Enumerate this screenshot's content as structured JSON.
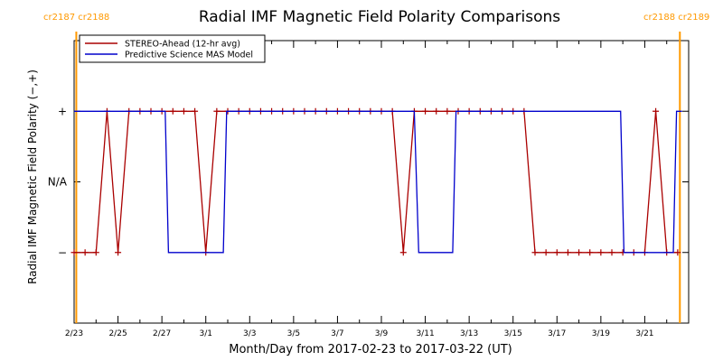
{
  "chart_data": {
    "type": "line",
    "title": "Radial IMF Magnetic Field Polarity Comparisons",
    "xlabel": "Month/Day from 2017-02-23 to 2017-03-22 (UT)",
    "ylabel": "Radial IMF Magnetic Field Polarity (−,+)",
    "y_categories": [
      "−",
      "N/A",
      "+"
    ],
    "y_values_map": {
      "−": -1,
      "N/A": 0,
      "+": 1
    },
    "ylim": [
      -2,
      2
    ],
    "x_tick_labels": [
      "2/23",
      "2/25",
      "2/27",
      "3/1",
      "3/3",
      "3/5",
      "3/7",
      "3/9",
      "3/11",
      "3/13",
      "3/15",
      "3/17",
      "3/19",
      "3/21"
    ],
    "xlim_days": [
      0,
      28
    ],
    "carrington_labels": [
      {
        "text": "cr2187 cr2188",
        "day": 0.1
      },
      {
        "text": "cr2188 cr2189",
        "day": 27.6
      }
    ],
    "legend": {
      "placement": "top-left"
    },
    "series": [
      {
        "name": "STEREO-Ahead (12-hr avg)",
        "color": "#aa0000",
        "marker": "plus",
        "x": [
          0,
          0.5,
          1,
          1.5,
          2,
          2.5,
          3,
          3.5,
          4,
          4.5,
          5,
          5.5,
          6,
          6.5,
          7,
          7.5,
          8,
          8.5,
          9,
          9.5,
          10,
          10.5,
          11,
          11.5,
          12,
          12.5,
          13,
          13.5,
          14,
          14.5,
          15,
          15.5,
          16,
          16.5,
          17,
          17.5,
          18,
          18.5,
          19,
          19.5,
          20,
          20.5,
          21,
          21.5,
          22,
          22.5,
          23,
          23.5,
          24,
          24.5,
          25,
          25.5,
          26,
          26.5,
          27,
          27.5
        ],
        "y": [
          -1,
          -1,
          -1,
          1,
          -1,
          1,
          1,
          1,
          1,
          1,
          1,
          1,
          -1,
          1,
          1,
          1,
          1,
          1,
          1,
          1,
          1,
          1,
          1,
          1,
          1,
          1,
          1,
          1,
          1,
          1,
          -1,
          1,
          1,
          1,
          1,
          1,
          1,
          1,
          1,
          1,
          1,
          1,
          -1,
          -1,
          -1,
          -1,
          -1,
          -1,
          -1,
          -1,
          -1,
          -1,
          -1,
          1,
          -1,
          -1
        ]
      },
      {
        "name": "Predictive Science MAS Model",
        "color": "#0000cc",
        "x": [
          0,
          4.15,
          4.3,
          6.8,
          6.95,
          15.5,
          15.7,
          17.25,
          17.4,
          24.9,
          25.05,
          27.3,
          27.45,
          27.7
        ],
        "y": [
          1,
          1,
          -1,
          -1,
          1,
          1,
          -1,
          -1,
          1,
          1,
          -1,
          -1,
          1,
          1
        ]
      }
    ]
  }
}
